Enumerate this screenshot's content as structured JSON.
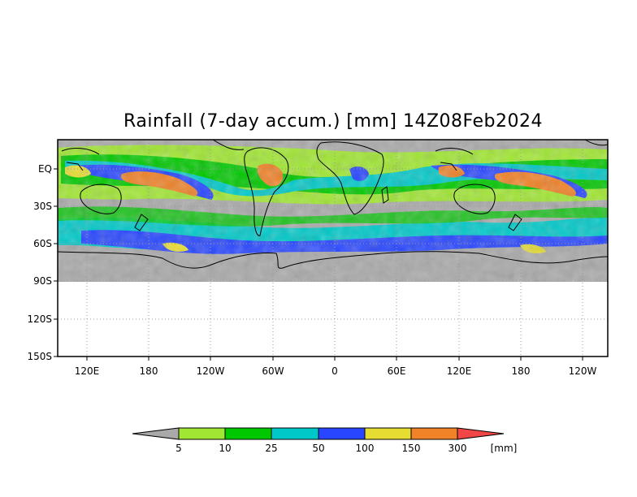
{
  "title": "Rainfall (7-day accum.) [mm] 14Z08Feb2024",
  "map": {
    "lat_labels": [
      "EQ",
      "30S",
      "60S",
      "90S",
      "120S",
      "150S"
    ],
    "lon_labels": [
      "120E",
      "180",
      "120W",
      "60W",
      "0",
      "60E",
      "120E",
      "180",
      "120W"
    ],
    "data_region": "90S to ~15N, rainfall field over land and ocean; blank below 90S",
    "colors": {
      "below_5": "#a9a9a9",
      "5_10": "#a0e632",
      "10_25": "#00c800",
      "25_50": "#00c8c8",
      "50_100": "#2846ff",
      "100_150": "#e6dc32",
      "150_300": "#f08228",
      "above_300": "#f04646"
    }
  },
  "colorbar": {
    "ticks": [
      "5",
      "10",
      "25",
      "50",
      "100",
      "150",
      "300"
    ],
    "unit": "[mm]",
    "colors": [
      "#a9a9a9",
      "#a0e632",
      "#00c800",
      "#00c8c8",
      "#2846ff",
      "#e6dc32",
      "#f08228",
      "#f04646"
    ]
  }
}
